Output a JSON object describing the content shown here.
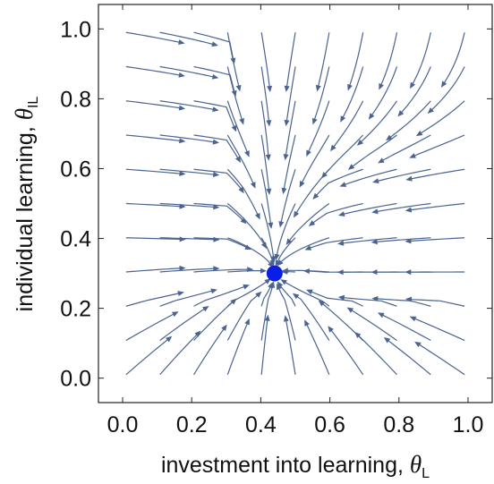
{
  "chart_data": {
    "type": "streamplot",
    "xlabel": {
      "text": "investment into learning, ",
      "symbol": "θ",
      "subscript": "L"
    },
    "ylabel": {
      "text": "individual learning, ",
      "symbol": "θ",
      "subscript": "IL"
    },
    "xlim": [
      -0.07,
      1.07
    ],
    "ylim": [
      -0.07,
      1.07
    ],
    "xticks": [
      "0.0",
      "0.2",
      "0.4",
      "0.6",
      "0.8",
      "1.0"
    ],
    "yticks": [
      "0.0",
      "0.2",
      "0.4",
      "0.6",
      "0.8",
      "1.0"
    ],
    "tick_values": [
      0.0,
      0.2,
      0.4,
      0.6,
      0.8,
      1.0
    ],
    "equilibrium": {
      "x": 0.44,
      "y": 0.3
    },
    "colors": {
      "stream": "#4a6390",
      "equilibrium": "#0a1ee6",
      "frame": "#222222"
    },
    "grid": false
  }
}
